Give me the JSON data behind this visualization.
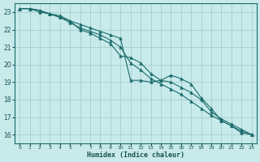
{
  "xlabel": "Humidex (Indice chaleur)",
  "background_color": "#c8eaea",
  "grid_color": "#a0c8c8",
  "line_color": "#1a6b6b",
  "marker_color": "#1a6b6b",
  "xlim": [
    -0.5,
    23.5
  ],
  "ylim": [
    15.5,
    23.5
  ],
  "yticks": [
    16,
    17,
    18,
    19,
    20,
    21,
    22,
    23
  ],
  "xtick_labels": [
    "0",
    "1",
    "2",
    "3",
    "4",
    "5",
    "",
    "7",
    "8",
    "9",
    "10",
    "11",
    "12",
    "13",
    "14",
    "15",
    "16",
    "17",
    "18",
    "19",
    "20",
    "21",
    "22",
    "23"
  ],
  "series": [
    [
      23.2,
      23.2,
      23.1,
      22.9,
      22.7,
      22.5,
      22.3,
      22.1,
      21.9,
      21.7,
      21.5,
      19.1,
      19.1,
      19.0,
      19.1,
      19.4,
      19.2,
      18.9,
      18.1,
      17.5,
      16.8,
      16.5,
      16.1,
      16.0
    ],
    [
      23.2,
      23.2,
      23.0,
      22.9,
      22.8,
      22.5,
      22.0,
      21.8,
      21.5,
      21.2,
      20.5,
      20.4,
      20.1,
      19.5,
      19.1,
      19.0,
      18.7,
      18.4,
      18.0,
      17.3,
      16.9,
      16.6,
      16.3,
      16.0
    ],
    [
      23.2,
      23.2,
      23.1,
      22.9,
      22.7,
      22.4,
      22.1,
      21.9,
      21.7,
      21.4,
      21.0,
      20.1,
      19.7,
      19.2,
      18.9,
      18.6,
      18.3,
      17.9,
      17.5,
      17.1,
      16.8,
      16.5,
      16.2,
      16.0
    ]
  ]
}
